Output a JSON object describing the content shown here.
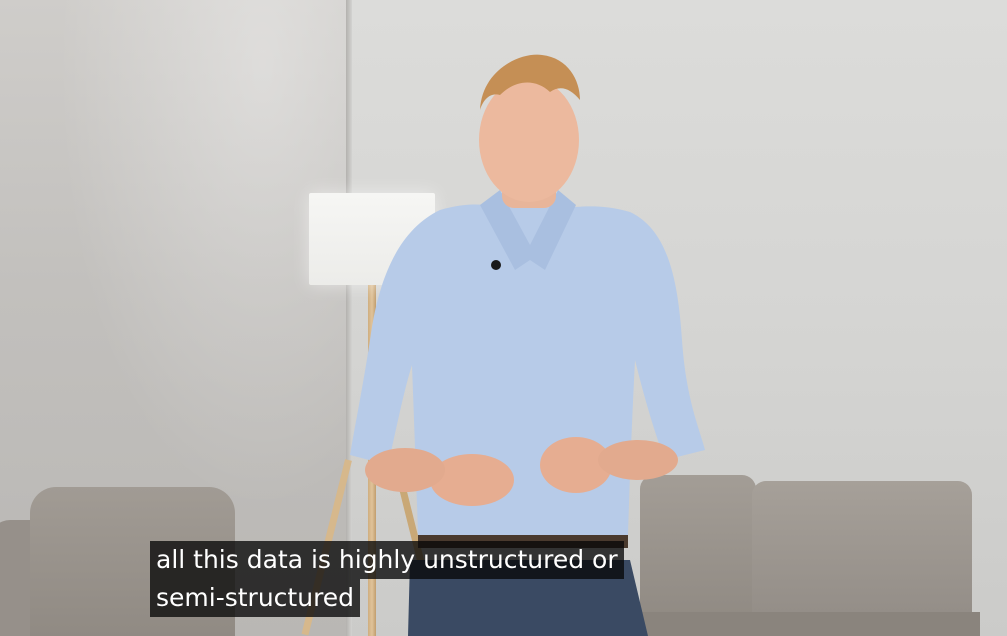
{
  "video": {
    "scene": "presenter-talking"
  },
  "captions": {
    "line1": "all this data is highly unstructured or",
    "line2": "semi-structured"
  }
}
